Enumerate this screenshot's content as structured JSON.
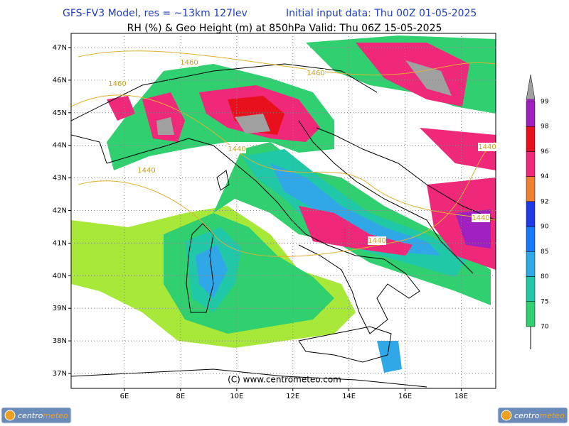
{
  "header": {
    "title_left": "GFS-FV3 Model, res = ~13km 127lev",
    "title_right": "Initial input data: Thu 00Z 01-05-2025",
    "subtitle": "RH (%) & Geo Height (m) at 850hPa  Valid: Thu 06Z 15-05-2025"
  },
  "map": {
    "lat_labels": [
      "47N",
      "46N",
      "45N",
      "44N",
      "43N",
      "42N",
      "41N",
      "40N",
      "39N",
      "38N",
      "37N"
    ],
    "lon_labels": [
      "6E",
      "8E",
      "10E",
      "12E",
      "14E",
      "16E",
      "18E"
    ],
    "contour_labels": [
      "1460",
      "1460",
      "1460",
      "1440",
      "1440",
      "1440",
      "1440",
      "1440"
    ],
    "copyright": "(C) www.centrometeo.com"
  },
  "colorbar": {
    "labels": [
      "99",
      "98",
      "96",
      "94",
      "92",
      "90",
      "85",
      "80",
      "75",
      "70"
    ],
    "colors": [
      "#a020c0",
      "#e8101c",
      "#f0287a",
      "#f08030",
      "#2038e8",
      "#1878f8",
      "#30a8e8",
      "#20c8a8",
      "#30d070",
      "#a8e838"
    ]
  },
  "logos": {
    "left": [
      "centro",
      "meteo"
    ],
    "right": [
      "centro",
      "meteo"
    ]
  }
}
